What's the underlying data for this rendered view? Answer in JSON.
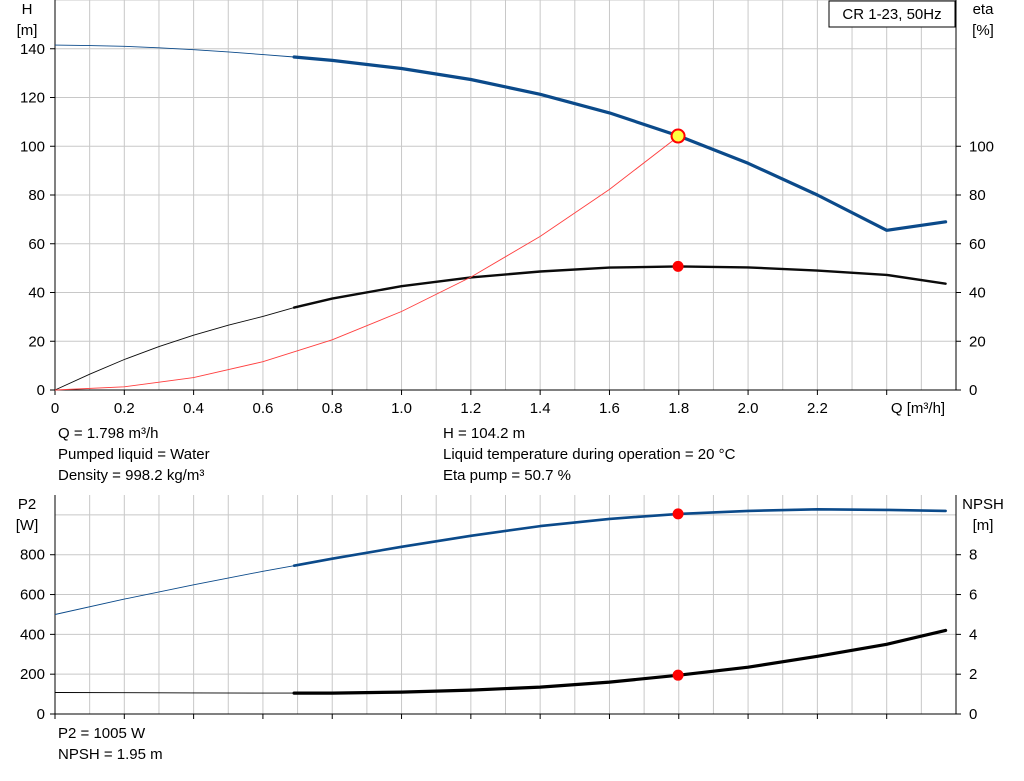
{
  "chart_data": [
    {
      "type": "line",
      "title": "CR 1-23, 50Hz",
      "xlabel": "Q [m³/h]",
      "ylabel_left": [
        "H",
        "[m]"
      ],
      "ylabel_right": [
        "eta",
        "[%]"
      ],
      "xlim": [
        0,
        2.6
      ],
      "ylim_left": [
        0,
        160
      ],
      "ylim_right": [
        0,
        160
      ],
      "x_ticks": [
        "0",
        "0.2",
        "0.4",
        "0.6",
        "0.8",
        "1.0",
        "1.2",
        "1.4",
        "1.6",
        "1.8",
        "2.0",
        "2.2"
      ],
      "y_ticks_left": [
        "0",
        "20",
        "40",
        "60",
        "80",
        "100",
        "120",
        "140"
      ],
      "y_ticks_right": [
        "0",
        "20",
        "40",
        "60",
        "80",
        "100"
      ],
      "grid": true,
      "series": [
        {
          "name": "H",
          "color": "#0b4a8a",
          "x": [
            0,
            0.1,
            0.2,
            0.3,
            0.4,
            0.5,
            0.6,
            0.69,
            0.8,
            1.0,
            1.2,
            1.4,
            1.6,
            1.8,
            2.0,
            2.2,
            2.4,
            2.57
          ],
          "y": [
            141.5,
            141.3,
            141.0,
            140.4,
            139.6,
            138.7,
            137.6,
            136.6,
            135.2,
            131.9,
            127.4,
            121.3,
            113.7,
            104.2,
            93.0,
            80.0,
            65.5,
            69.0
          ]
        },
        {
          "name": "eta",
          "color": "#0b0b0b",
          "x": [
            0,
            0.1,
            0.2,
            0.3,
            0.4,
            0.5,
            0.6,
            0.69,
            0.8,
            1.0,
            1.2,
            1.4,
            1.6,
            1.8,
            2.0,
            2.2,
            2.4,
            2.57
          ],
          "y": [
            0,
            6.5,
            12.5,
            17.8,
            22.5,
            26.6,
            30.2,
            33.8,
            37.5,
            42.6,
            46.2,
            48.6,
            50.2,
            50.7,
            50.3,
            49.0,
            47.2,
            43.6
          ]
        },
        {
          "name": "system curve",
          "color": "#ff4040",
          "x": [
            0,
            0.2,
            0.4,
            0.6,
            0.8,
            1.0,
            1.2,
            1.4,
            1.6,
            1.8
          ],
          "y": [
            0,
            1.3,
            5.1,
            11.6,
            20.6,
            32.2,
            46.3,
            63.0,
            82.3,
            104.2
          ]
        }
      ],
      "operating_points": [
        {
          "series": "H",
          "x": 1.798,
          "y": 104.2
        },
        {
          "series": "eta",
          "x": 1.798,
          "y": 50.7
        }
      ]
    },
    {
      "type": "line",
      "xlabel": "",
      "ylabel_left": [
        "P2",
        "[W]"
      ],
      "ylabel_right": [
        "NPSH",
        "[m]"
      ],
      "xlim": [
        0,
        2.6
      ],
      "ylim_left": [
        0,
        1100
      ],
      "ylim_right": [
        0,
        11
      ],
      "y_ticks_left": [
        "0",
        "200",
        "400",
        "600",
        "800"
      ],
      "y_ticks_right": [
        "0",
        "2",
        "4",
        "6",
        "8"
      ],
      "grid": true,
      "series": [
        {
          "name": "P2",
          "color": "#0b4a8a",
          "x": [
            0,
            0.2,
            0.4,
            0.6,
            0.69,
            0.8,
            1.0,
            1.2,
            1.4,
            1.6,
            1.8,
            2.0,
            2.2,
            2.4,
            2.57
          ],
          "y": [
            500,
            577,
            649,
            717,
            745,
            780,
            840,
            895,
            944,
            980,
            1005,
            1020,
            1028,
            1025,
            1020
          ]
        },
        {
          "name": "NPSH",
          "color": "#000000",
          "x": [
            0,
            0.2,
            0.4,
            0.6,
            0.69,
            0.8,
            1.0,
            1.2,
            1.4,
            1.6,
            1.8,
            2.0,
            2.2,
            2.4,
            2.57
          ],
          "y": [
            1.08,
            1.07,
            1.06,
            1.05,
            1.05,
            1.05,
            1.1,
            1.2,
            1.35,
            1.6,
            1.95,
            2.35,
            2.9,
            3.5,
            4.2
          ]
        }
      ],
      "operating_points": [
        {
          "series": "P2",
          "x": 1.798,
          "y": 1005
        },
        {
          "series": "NPSH",
          "x": 1.798,
          "y": 1.95
        }
      ]
    }
  ],
  "info_top": {
    "q": "Q = 1.798 m³/h",
    "liquid": "Pumped liquid = Water",
    "density": "Density = 998.2 kg/m³",
    "h": "H = 104.2 m",
    "temperature": "Liquid temperature during operation = 20 °C",
    "eta": "Eta pump = 50.7 %"
  },
  "info_bottom": {
    "p2": "P2 = 1005 W",
    "npsh": "NPSH = 1.95 m"
  },
  "colors": {
    "grid": "#c8c8c8",
    "operating_point": "#ff0000",
    "h_marker_fill": "#ffff40"
  }
}
